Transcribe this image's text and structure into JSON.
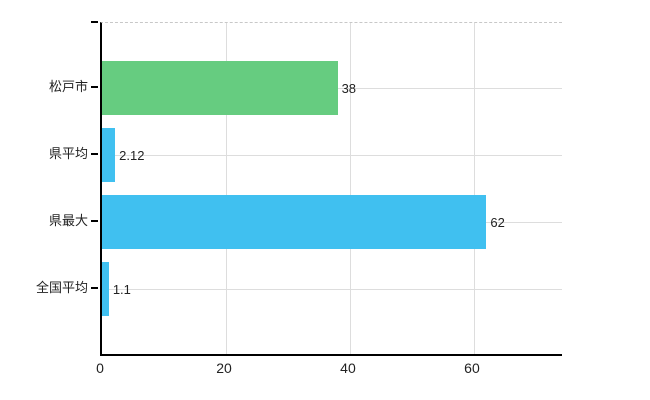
{
  "chart_data": {
    "type": "bar",
    "orientation": "horizontal",
    "title": "",
    "categories": [
      "松戸市",
      "県平均",
      "県最大",
      "全国平均"
    ],
    "values": [
      38,
      2.12,
      62,
      1.1
    ],
    "value_labels": [
      "38",
      "2.12",
      "62",
      "1.1"
    ],
    "series": [
      {
        "name": "value",
        "values": [
          38,
          2.12,
          62,
          1.1
        ]
      }
    ],
    "bar_colors": [
      "#66cc80",
      "#40c0f0",
      "#40c0f0",
      "#40c0f0"
    ],
    "x_tick_labels": [
      "0",
      "20",
      "40",
      "60"
    ],
    "x_tick_values": [
      0,
      20,
      40,
      60
    ],
    "xlim": [
      0,
      74.2
    ],
    "xlabel": "",
    "ylabel": "",
    "grid": true,
    "legend": false,
    "colors": {
      "grid": "#dddddd",
      "axis": "#000000",
      "plot_top_border": "#c8c8c8",
      "text": "#222222",
      "background": "#ffffff"
    }
  }
}
